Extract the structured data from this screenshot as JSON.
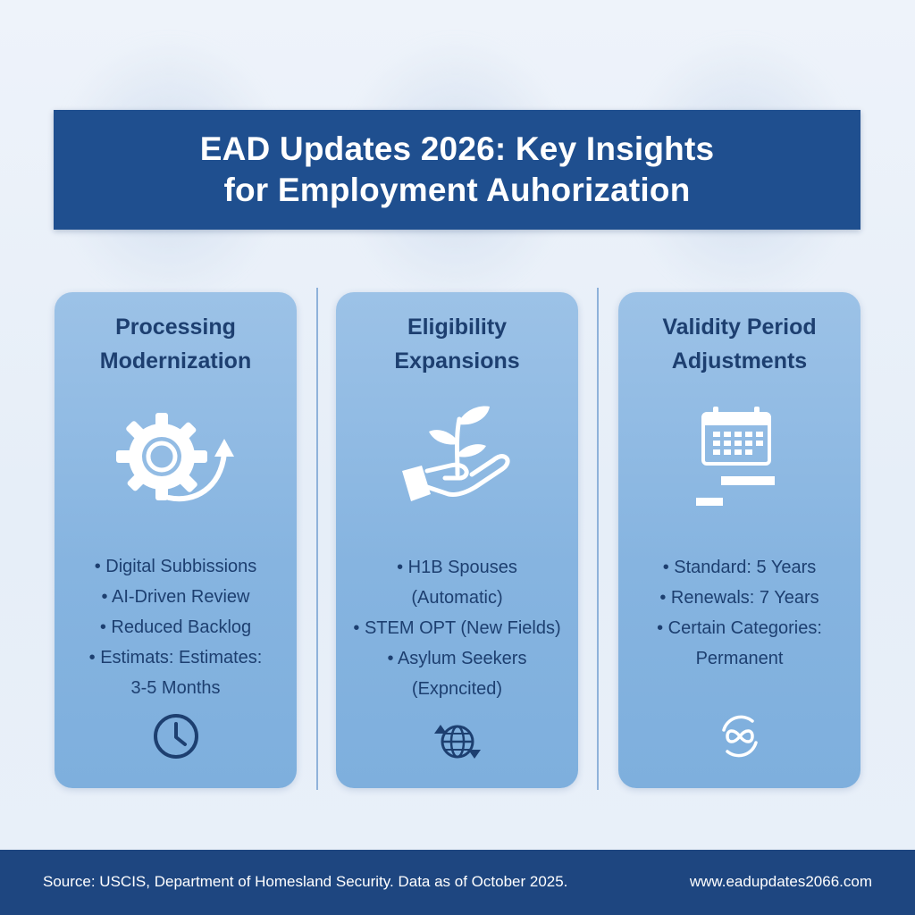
{
  "title": {
    "line1": "EAD Updates 2026: Key Insights",
    "line2": "for Employment Auhorization"
  },
  "panels": [
    {
      "title_line1": "Processing",
      "title_line2": "Modernization",
      "icon": "gear-arrow-icon",
      "bullets": [
        "• Digital Subbissions",
        "• AI-Driven Review",
        "• Reduced Backlog",
        "• Estimats: Estimates:",
        "3-5 Months"
      ],
      "bottom_icon": "clock-icon"
    },
    {
      "title_line1": "Eligibility",
      "title_line2": "Expansions",
      "icon": "hand-sprout-icon",
      "bullets": [
        "• H1B Spouses",
        "(Automatic)",
        "• STEM OPT (New Fields)",
        "• Asylum Seekers",
        "(Expncited)"
      ],
      "bottom_icon": "globe-arrows-icon"
    },
    {
      "title_line1": "Validity Period",
      "title_line2": "Adjustments",
      "icon": "calendar-icon",
      "bullets": [
        "• Standard: 5 Years",
        "• Renewals: 7 Years",
        "• Certain Categories:",
        "Permanent"
      ],
      "bottom_icon": "infinity-icon"
    }
  ],
  "footer": {
    "source": "Source: USCIS, Department of Homesland Security. Data as of October 2025.",
    "url": "www.eadupdates2066.com"
  },
  "colors": {
    "banner": "#1f4f8f",
    "panel": "#86b4e0",
    "heading_text": "#1d3f70",
    "footer": "#1e4680"
  }
}
